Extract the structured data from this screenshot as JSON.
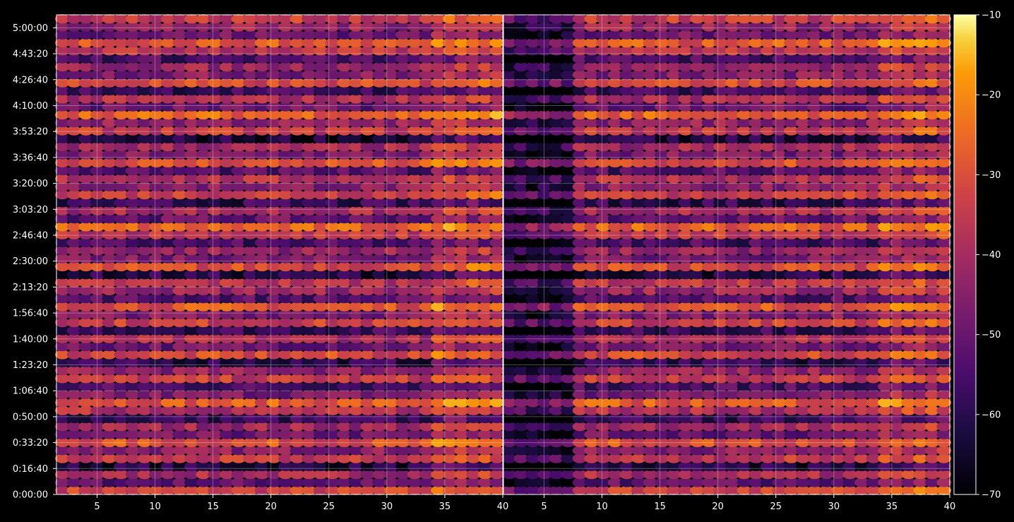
{
  "chart_data": {
    "type": "heatmap",
    "colormap": "inferno",
    "background": "#000000",
    "grid": true,
    "panels": [
      {
        "name": "left",
        "x_range": [
          1.5,
          40
        ],
        "x_ticks": [
          5,
          10,
          15,
          20,
          25,
          30,
          35,
          40
        ],
        "y_range_seconds": [
          0,
          18500
        ],
        "cell_count_x": 38,
        "cell_count_y": 60
      },
      {
        "name": "right",
        "x_range": [
          1.5,
          40
        ],
        "x_ticks": [
          5,
          10,
          15,
          20,
          25,
          30,
          35,
          40
        ],
        "y_range_seconds": [
          0,
          18500
        ],
        "cell_count_x": 38,
        "cell_count_y": 60
      }
    ],
    "y_ticks": [
      {
        "value": 0,
        "label": "0:00:00"
      },
      {
        "value": 1000,
        "label": "0:16:40"
      },
      {
        "value": 2000,
        "label": "0:33:20"
      },
      {
        "value": 3000,
        "label": "0:50:00"
      },
      {
        "value": 4000,
        "label": "1:06:40"
      },
      {
        "value": 5000,
        "label": "1:23:20"
      },
      {
        "value": 6000,
        "label": "1:40:00"
      },
      {
        "value": 7000,
        "label": "1:56:40"
      },
      {
        "value": 8000,
        "label": "2:13:20"
      },
      {
        "value": 9000,
        "label": "2:30:00"
      },
      {
        "value": 10000,
        "label": "2:46:40"
      },
      {
        "value": 11000,
        "label": "3:03:20"
      },
      {
        "value": 12000,
        "label": "3:20:00"
      },
      {
        "value": 13000,
        "label": "3:36:40"
      },
      {
        "value": 14000,
        "label": "3:53:20"
      },
      {
        "value": 15000,
        "label": "4:10:00"
      },
      {
        "value": 16000,
        "label": "4:26:40"
      },
      {
        "value": 17000,
        "label": "4:43:20"
      },
      {
        "value": 18000,
        "label": "5:00:00"
      }
    ],
    "colorbar": {
      "min": -70,
      "max": -10,
      "ticks": [
        {
          "value": -10,
          "label": "−10"
        },
        {
          "value": -20,
          "label": "−20"
        },
        {
          "value": -30,
          "label": "−30"
        },
        {
          "value": -40,
          "label": "−40"
        },
        {
          "value": -50,
          "label": "−50"
        },
        {
          "value": -60,
          "label": "−60"
        },
        {
          "value": -70,
          "label": "−70"
        }
      ]
    },
    "row_levels_dB": [
      -33,
      -52,
      -40,
      -62,
      -36,
      -45,
      -30,
      -50,
      -41,
      -58,
      -38,
      -28,
      -47,
      -55,
      -35,
      -44,
      -60,
      -32,
      -49,
      -39,
      -57,
      -34,
      -46,
      -29,
      -53,
      -42,
      -37,
      -61,
      -31,
      -48,
      -43,
      -56,
      -36,
      -27,
      -51,
      -40,
      -59,
      -33,
      -45,
      -38,
      -54,
      -30,
      -47,
      -41,
      -63,
      -35,
      -44,
      -26,
      -50,
      -39,
      -57,
      -32,
      -46,
      -42,
      -55,
      -37,
      -29,
      -49,
      -43,
      -35
    ]
  }
}
